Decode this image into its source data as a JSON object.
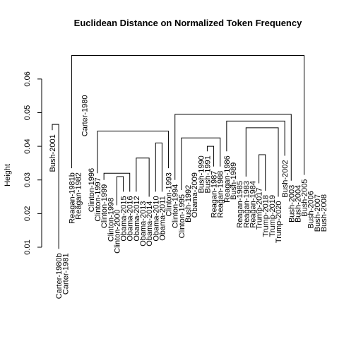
{
  "chart_data": {
    "type": "dendrogram",
    "title": "Euclidean Distance on Normalized Token Frequency",
    "xlabel": "",
    "ylabel": "Height",
    "ylim": [
      0.01,
      0.069
    ],
    "yticks": [
      0.01,
      0.02,
      0.03,
      0.04,
      0.05,
      0.06
    ],
    "ytick_labels": [
      "0.01",
      "0.02",
      "0.03",
      "0.04",
      "0.05",
      "0.06"
    ],
    "leaves": [
      {
        "label": "Bush-2001",
        "height": 0.0448
      },
      {
        "label": "Carter-1980b",
        "height": 0.0095
      },
      {
        "label": "Carter-1981",
        "height": 0.0095
      },
      {
        "label": "Reagan-1981b",
        "height": 0.0335
      },
      {
        "label": "Reagan-1982",
        "height": 0.0335
      },
      {
        "label": "Carter-1980",
        "height": 0.0565
      },
      {
        "label": "Clinton-1996",
        "height": 0.0348
      },
      {
        "label": "Clinton-1997",
        "height": 0.032
      },
      {
        "label": "Clinton-1999",
        "height": 0.03
      },
      {
        "label": "Clinton-1998",
        "height": 0.026
      },
      {
        "label": "Clinton-2000",
        "height": 0.0225
      },
      {
        "label": "Obama-2015",
        "height": 0.0265
      },
      {
        "label": "Obama-2016",
        "height": 0.0265
      },
      {
        "label": "Obama-2012",
        "height": 0.0265
      },
      {
        "label": "Obama-2013",
        "height": 0.025
      },
      {
        "label": "Obama-2014",
        "height": 0.025
      },
      {
        "label": "Obama-2010",
        "height": 0.0265
      },
      {
        "label": "Obama-2011",
        "height": 0.0265
      },
      {
        "label": "Clinton-1993",
        "height": 0.0335
      },
      {
        "label": "Clinton-1994",
        "height": 0.03
      },
      {
        "label": "Clinton-1995",
        "height": 0.027
      },
      {
        "label": "Bush-1992",
        "height": 0.0298
      },
      {
        "label": "Obama-2009",
        "height": 0.0335
      },
      {
        "label": "Bush-1990",
        "height": 0.0385
      },
      {
        "label": "Bush-1991",
        "height": 0.0385
      },
      {
        "label": "Reagan-1987",
        "height": 0.034
      },
      {
        "label": "Reagan-1988",
        "height": 0.034
      },
      {
        "label": "Reagan-1986",
        "height": 0.0385
      },
      {
        "label": "Bush-1989",
        "height": 0.0365
      },
      {
        "label": "Reagan-1985",
        "height": 0.031
      },
      {
        "label": "Reagan-1983",
        "height": 0.031
      },
      {
        "label": "Reagan-1984",
        "height": 0.031
      },
      {
        "label": "Trump-2017",
        "height": 0.029
      },
      {
        "label": "Trump-2018",
        "height": 0.0268
      },
      {
        "label": "Trump-2019",
        "height": 0.0268
      },
      {
        "label": "Trump-2020",
        "height": 0.025
      },
      {
        "label": "Bush-2002",
        "height": 0.0372
      },
      {
        "label": "Bush-2003",
        "height": 0.0298
      },
      {
        "label": "Bush-2004",
        "height": 0.0298
      },
      {
        "label": "Bush-2005",
        "height": 0.0315
      },
      {
        "label": "Bush-2006",
        "height": 0.028
      },
      {
        "label": "Bush-2007",
        "height": 0.027
      },
      {
        "label": "Bush-2008",
        "height": 0.027
      }
    ],
    "merges": [
      [
        2,
        3,
        0.016
      ],
      [
        4,
        5,
        0.0375
      ],
      [
        -1,
        -2,
        0.0465
      ],
      [
        1,
        -3,
        0.0495
      ],
      [
        10,
        11,
        0.025
      ],
      [
        9,
        -5,
        0.0285
      ],
      [
        8,
        -6,
        0.0345
      ],
      [
        7,
        -7,
        0.0375
      ],
      [
        12,
        13,
        0.0298
      ],
      [
        15,
        16,
        0.027
      ],
      [
        14,
        -10,
        0.03
      ],
      [
        17,
        18,
        0.0298
      ],
      [
        -11,
        -12,
        0.031
      ],
      [
        -9,
        -13,
        0.032
      ],
      [
        20,
        21,
        0.027
      ],
      [
        19,
        -15,
        0.0335
      ],
      [
        -14,
        -16,
        0.0365
      ],
      [
        22,
        23,
        0.0365
      ],
      [
        -17,
        -18,
        0.041
      ],
      [
        -8,
        -19,
        0.0445
      ],
      [
        24,
        25,
        0.041
      ],
      [
        30,
        31,
        0.033
      ],
      [
        32,
        -22,
        0.034
      ],
      [
        29,
        -23,
        0.035
      ],
      [
        26,
        27,
        0.037
      ],
      [
        28,
        -24,
        0.039
      ],
      [
        -25,
        -26,
        0.04
      ],
      [
        -21,
        -27,
        0.0425
      ],
      [
        35,
        36,
        0.0285
      ],
      [
        34,
        -29,
        0.03
      ],
      [
        33,
        -30,
        0.0325
      ],
      [
        41,
        42,
        0.0305
      ],
      [
        40,
        -32,
        0.036
      ],
      [
        38,
        39,
        0.034
      ],
      [
        -34,
        -33,
        0.0375
      ],
      [
        37,
        -35,
        0.0405
      ],
      [
        -31,
        -36,
        0.0455
      ],
      [
        -28,
        -37,
        0.0475
      ],
      [
        -20,
        -38,
        0.0495
      ],
      [
        6,
        -39,
        0.0595
      ],
      [
        -4,
        -40,
        0.067
      ]
    ]
  }
}
